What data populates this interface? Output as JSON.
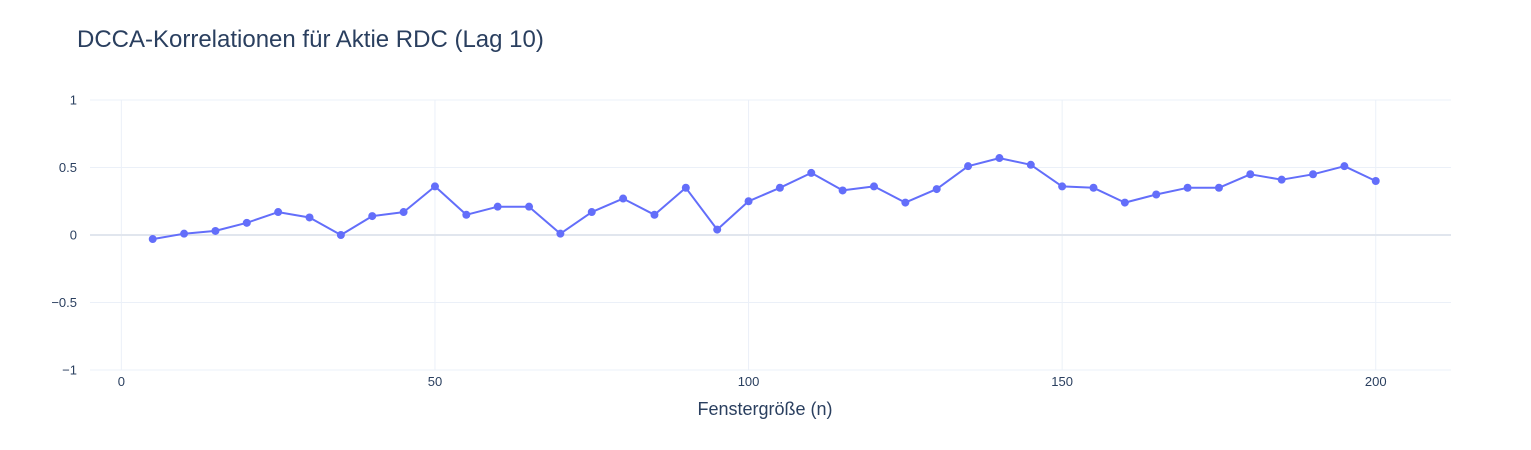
{
  "chart_data": {
    "type": "line",
    "mode": "lines+markers",
    "title": "DCCA-Korrelationen für Aktie RDC (Lag 10)",
    "xlabel": "Fenstergröße (n)",
    "ylabel": "",
    "xlim": [
      -5,
      212
    ],
    "ylim": [
      -1,
      1
    ],
    "x_ticks": [
      0,
      50,
      100,
      150,
      200
    ],
    "x_tick_labels": [
      "0",
      "50",
      "100",
      "150",
      "200"
    ],
    "y_ticks": [
      -1,
      -0.5,
      0,
      0.5,
      1
    ],
    "y_tick_labels": [
      "−1",
      "−0.5",
      "0",
      "0.5",
      "1"
    ],
    "grid": true,
    "color": "#636efa",
    "series": [
      {
        "x": [
          5,
          10,
          15,
          20,
          25,
          30,
          35,
          40,
          45,
          50,
          55,
          60,
          65,
          70,
          75,
          80,
          85,
          90,
          95,
          100,
          105,
          110,
          115,
          120,
          125,
          130,
          135,
          140,
          145,
          150,
          155,
          160,
          165,
          170,
          175,
          180,
          185,
          190,
          195,
          200
        ],
        "values": [
          -0.03,
          0.01,
          0.03,
          0.09,
          0.17,
          0.13,
          0.0,
          0.14,
          0.17,
          0.36,
          0.15,
          0.21,
          0.21,
          0.01,
          0.17,
          0.27,
          0.15,
          0.35,
          0.04,
          0.25,
          0.35,
          0.46,
          0.33,
          0.36,
          0.24,
          0.34,
          0.51,
          0.57,
          0.52,
          0.36,
          0.35,
          0.24,
          0.3,
          0.35,
          0.35,
          0.45,
          0.41,
          0.45,
          0.51,
          0.4
        ]
      }
    ]
  }
}
